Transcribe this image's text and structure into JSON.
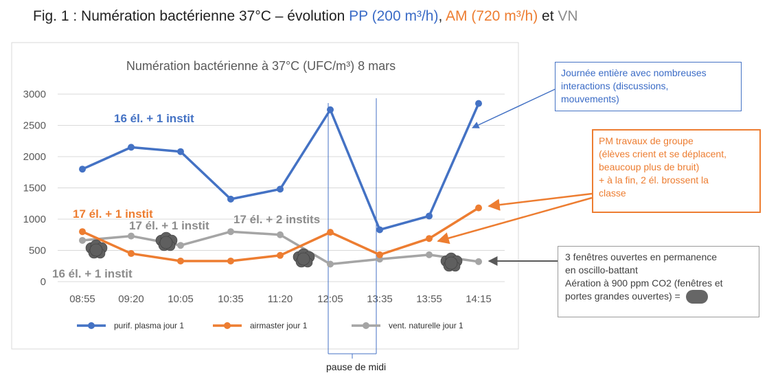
{
  "figure": {
    "title_prefix": "Fig. 1 : Numération bactérienne 37°C – évolution ",
    "title_pp": "PP (200 m³/h)",
    "title_sep": ", ",
    "title_am": "AM (720 m³/h)",
    "title_et": " et ",
    "title_vn": "VN"
  },
  "chart_data": {
    "type": "line",
    "title": "Numération bactérienne à 37°C (UFC/m³) 8 mars",
    "categories": [
      "08:55",
      "09:20",
      "10:05",
      "10:35",
      "11:20",
      "12:05",
      "13:35",
      "13:55",
      "14:15"
    ],
    "ylim": [
      0,
      3000
    ],
    "yticks": [
      "0",
      "500",
      "1000",
      "1500",
      "2000",
      "2500",
      "3000"
    ],
    "grid": true,
    "legend_position": "bottom",
    "series": [
      {
        "name": "purif. plasma jour 1",
        "color": "#4472c4",
        "values": [
          1800,
          2150,
          2080,
          1320,
          1480,
          2750,
          830,
          1050,
          2850
        ]
      },
      {
        "name": "airmaster jour 1",
        "color": "#ed7d31",
        "values": [
          800,
          450,
          330,
          330,
          420,
          790,
          430,
          690,
          1180
        ]
      },
      {
        "name": "vent. naturelle jour 1",
        "color": "#a5a5a5",
        "values": [
          660,
          730,
          580,
          800,
          750,
          280,
          360,
          430,
          320
        ]
      }
    ],
    "annotations": [
      {
        "text": "16 él. + 1 instit",
        "color": "#4472c4"
      },
      {
        "text": "17 él. + 1 instit",
        "color": "#ed7d31"
      },
      {
        "text": "17 él. + 1 instit",
        "color": "#8c8c8c"
      },
      {
        "text": "17 él. + 2 instits",
        "color": "#8c8c8c"
      },
      {
        "text": "16 él. + 1 instit",
        "color": "#8c8c8c"
      }
    ]
  },
  "callouts": {
    "blue": [
      "Journée entière avec nombreuses",
      "interactions (discussions,",
      "mouvements)"
    ],
    "orange": [
      "PM travaux de groupe",
      "(élèves crient et se déplacent,",
      "beaucoup plus de bruit)",
      "+ à la fin, 2 él. brossent la",
      "classe"
    ],
    "gray": [
      "3 fenêtres ouvertes en permanence",
      "en oscillo-battant",
      "Aération à 900 ppm CO2 (fenêtres et",
      "portes grandes ouvertes) = "
    ]
  },
  "pause_label": "pause de midi"
}
